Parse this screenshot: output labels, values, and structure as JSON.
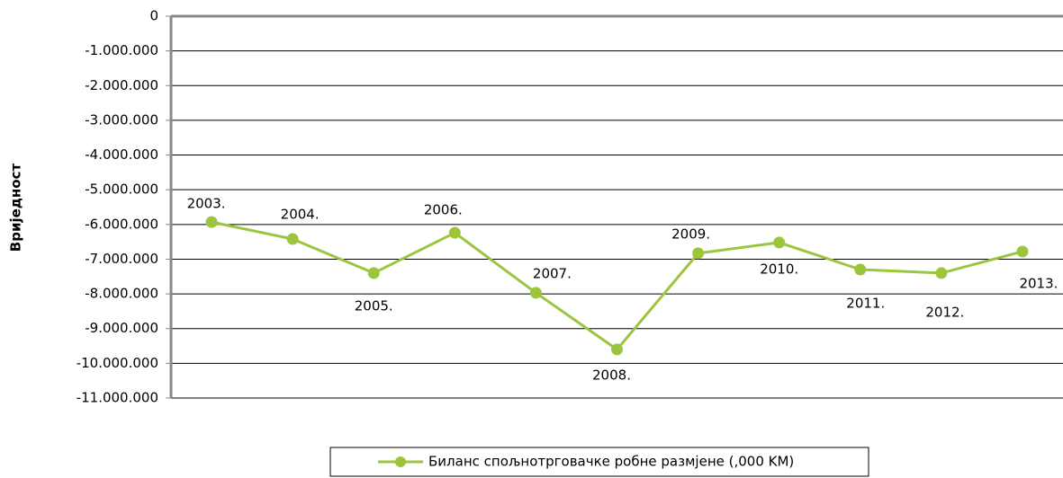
{
  "chart_data": {
    "type": "line",
    "y_axis_label": "Вриједност",
    "categories": [
      "2003.",
      "2004.",
      "2005.",
      "2006.",
      "2007.",
      "2008.",
      "2009.",
      "2010.",
      "2011.",
      "2012.",
      "2013."
    ],
    "series": [
      {
        "name": "Биланс спољнотрговачке робне размјене (,000 KM)",
        "color": "#9bc53d",
        "values": [
          -5930000,
          -6420000,
          -7400000,
          -6240000,
          -7970000,
          -9600000,
          -6830000,
          -6520000,
          -7300000,
          -7400000,
          -6780000
        ]
      }
    ],
    "ylim": [
      -11000000,
      0
    ],
    "yticks": [
      0,
      {
        "value": -1000000,
        "label": "-1.000.000"
      },
      {
        "value": -2000000,
        "label": "-2.000.000"
      },
      {
        "value": -3000000,
        "label": "-3.000.000"
      },
      {
        "value": -4000000,
        "label": "-4.000.000"
      },
      {
        "value": -5000000,
        "label": "-5.000.000"
      },
      {
        "value": -6000000,
        "label": "-6.000.000"
      },
      {
        "value": -7000000,
        "label": "-7.000.000"
      },
      {
        "value": -8000000,
        "label": "-8.000.000"
      },
      {
        "value": -9000000,
        "label": "-9.000.000"
      },
      {
        "value": -10000000,
        "label": "-10.000.000"
      },
      {
        "value": -11000000,
        "label": "-11.000.000"
      }
    ],
    "grid": true,
    "legend": "bottom"
  }
}
